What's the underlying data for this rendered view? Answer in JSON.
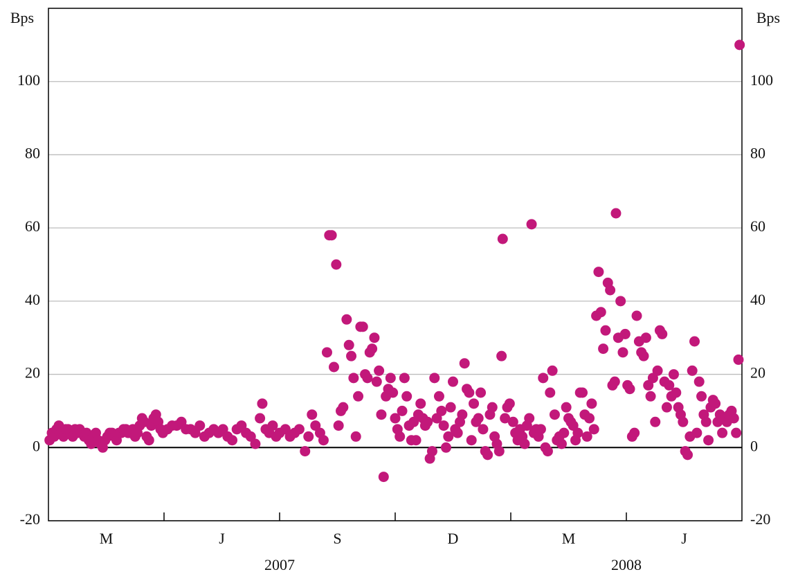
{
  "chart_data": {
    "type": "scatter",
    "y_label": "Bps",
    "categories": [
      "M",
      "J",
      "S",
      "D",
      "M",
      "J"
    ],
    "years": [
      "2007",
      "2008"
    ],
    "color": "#c2187a",
    "xlim": [
      0,
      6
    ],
    "ylim": [
      -20,
      120
    ],
    "yticks": [
      -20,
      0,
      20,
      40,
      60,
      80,
      100
    ],
    "grid": true,
    "x": [
      0.01,
      0.03,
      0.05,
      0.07,
      0.09,
      0.11,
      0.13,
      0.15,
      0.17,
      0.19,
      0.21,
      0.23,
      0.25,
      0.27,
      0.29,
      0.31,
      0.33,
      0.35,
      0.37,
      0.39,
      0.41,
      0.43,
      0.45,
      0.47,
      0.49,
      0.51,
      0.53,
      0.55,
      0.57,
      0.59,
      0.61,
      0.63,
      0.65,
      0.67,
      0.69,
      0.71,
      0.73,
      0.75,
      0.77,
      0.79,
      0.81,
      0.83,
      0.85,
      0.87,
      0.89,
      0.91,
      0.93,
      0.95,
      0.97,
      0.99,
      1.03,
      1.07,
      1.11,
      1.15,
      1.19,
      1.23,
      1.27,
      1.31,
      1.35,
      1.39,
      1.43,
      1.47,
      1.51,
      1.55,
      1.59,
      1.63,
      1.67,
      1.71,
      1.75,
      1.79,
      1.83,
      1.85,
      1.88,
      1.91,
      1.94,
      1.97,
      2.0,
      2.05,
      2.09,
      2.13,
      2.17,
      2.22,
      2.25,
      2.28,
      2.31,
      2.35,
      2.38,
      2.41,
      2.43,
      2.45,
      2.47,
      2.49,
      2.51,
      2.53,
      2.55,
      2.58,
      2.6,
      2.62,
      2.64,
      2.66,
      2.68,
      2.7,
      2.72,
      2.74,
      2.76,
      2.78,
      2.8,
      2.82,
      2.84,
      2.86,
      2.88,
      2.9,
      2.92,
      2.94,
      2.96,
      2.98,
      3.0,
      3.02,
      3.04,
      3.06,
      3.08,
      3.1,
      3.12,
      3.14,
      3.16,
      3.18,
      3.2,
      3.22,
      3.24,
      3.26,
      3.28,
      3.3,
      3.32,
      3.34,
      3.36,
      3.38,
      3.4,
      3.42,
      3.44,
      3.46,
      3.48,
      3.5,
      3.52,
      3.54,
      3.56,
      3.58,
      3.6,
      3.62,
      3.64,
      3.66,
      3.68,
      3.7,
      3.72,
      3.74,
      3.76,
      3.78,
      3.8,
      3.82,
      3.84,
      3.86,
      3.88,
      3.9,
      3.92,
      3.93,
      3.95,
      3.97,
      3.99,
      4.02,
      4.04,
      4.06,
      4.08,
      4.1,
      4.12,
      4.14,
      4.16,
      4.18,
      4.2,
      4.22,
      4.24,
      4.26,
      4.28,
      4.3,
      4.32,
      4.34,
      4.36,
      4.38,
      4.4,
      4.42,
      4.44,
      4.46,
      4.48,
      4.5,
      4.52,
      4.54,
      4.56,
      4.58,
      4.6,
      4.62,
      4.64,
      4.66,
      4.68,
      4.7,
      4.72,
      4.74,
      4.76,
      4.78,
      4.8,
      4.82,
      4.84,
      4.86,
      4.88,
      4.9,
      4.91,
      4.93,
      4.95,
      4.97,
      4.99,
      5.01,
      5.03,
      5.05,
      5.07,
      5.09,
      5.11,
      5.13,
      5.15,
      5.17,
      5.19,
      5.21,
      5.23,
      5.25,
      5.27,
      5.29,
      5.31,
      5.33,
      5.35,
      5.37,
      5.39,
      5.41,
      5.43,
      5.45,
      5.47,
      5.49,
      5.51,
      5.53,
      5.55,
      5.57,
      5.59,
      5.61,
      5.63,
      5.65,
      5.67,
      5.69,
      5.71,
      5.73,
      5.75,
      5.77,
      5.79,
      5.81,
      5.83,
      5.85,
      5.87,
      5.89,
      5.91,
      5.93,
      5.95,
      5.97,
      5.98
    ],
    "values": [
      2,
      4,
      3,
      5,
      6,
      4,
      3,
      5,
      5,
      4,
      3,
      5,
      4,
      5,
      4,
      3,
      4,
      2,
      1,
      3,
      4,
      2,
      1,
      0,
      2,
      3,
      4,
      4,
      3,
      2,
      4,
      4,
      5,
      5,
      4,
      4,
      5,
      3,
      4,
      6,
      8,
      7,
      3,
      2,
      6,
      8,
      9,
      7,
      5,
      4,
      5,
      6,
      6,
      7,
      5,
      5,
      4,
      6,
      3,
      4,
      5,
      4,
      5,
      3,
      2,
      5,
      6,
      4,
      3,
      1,
      8,
      12,
      5,
      4,
      6,
      3,
      4,
      5,
      3,
      4,
      5,
      -1,
      3,
      9,
      6,
      4,
      2,
      26,
      58,
      58,
      22,
      50,
      6,
      10,
      11,
      35,
      28,
      25,
      19,
      3,
      14,
      33,
      33,
      20,
      19,
      26,
      27,
      30,
      18,
      21,
      9,
      -8,
      14,
      16,
      19,
      15,
      8,
      5,
      3,
      10,
      19,
      14,
      6,
      2,
      7,
      2,
      9,
      12,
      8,
      6,
      7,
      -3,
      -1,
      19,
      8,
      14,
      10,
      6,
      0,
      3,
      11,
      18,
      5,
      4,
      7,
      9,
      23,
      16,
      15,
      2,
      12,
      7,
      8,
      15,
      5,
      -1,
      -2,
      9,
      11,
      3,
      1,
      -1,
      25,
      57,
      8,
      11,
      12,
      7,
      4,
      2,
      5,
      3,
      1,
      6,
      8,
      61,
      4,
      5,
      3,
      5,
      19,
      0,
      -1,
      15,
      21,
      9,
      2,
      3,
      1,
      4,
      11,
      8,
      7,
      6,
      2,
      4,
      15,
      15,
      9,
      3,
      8,
      12,
      5,
      36,
      48,
      37,
      27,
      32,
      45,
      43,
      17,
      18,
      64,
      30,
      40,
      26,
      31,
      17,
      16,
      3,
      4,
      36,
      29,
      26,
      25,
      30,
      17,
      14,
      19,
      7,
      21,
      32,
      31,
      18,
      11,
      17,
      14,
      20,
      15,
      11,
      9,
      7,
      -1,
      -2,
      3,
      21,
      29,
      4,
      18,
      14,
      9,
      7,
      2,
      11,
      13,
      12,
      7,
      9,
      4,
      8,
      7,
      9,
      10,
      8,
      4,
      24,
      110
    ]
  }
}
